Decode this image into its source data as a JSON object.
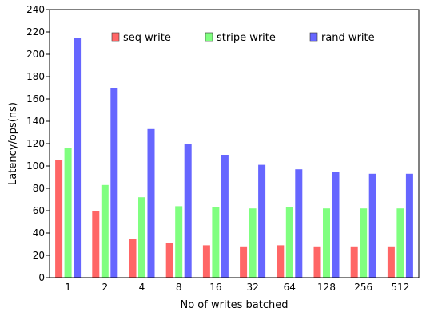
{
  "chart_data": {
    "type": "bar",
    "xlabel": "No of writes batched",
    "ylabel": "Latency/ops(ns)",
    "categories": [
      "1",
      "2",
      "4",
      "8",
      "16",
      "32",
      "64",
      "128",
      "256",
      "512"
    ],
    "ylim": [
      0,
      240
    ],
    "yticks": [
      0,
      20,
      40,
      60,
      80,
      100,
      120,
      140,
      160,
      180,
      200,
      220,
      240
    ],
    "grid": false,
    "legend_position": "top",
    "series": [
      {
        "name": "seq write",
        "color": "#ff6666",
        "values": [
          105,
          60,
          35,
          31,
          29,
          28,
          29,
          28,
          28,
          28
        ]
      },
      {
        "name": "stripe write",
        "color": "#80ff80",
        "values": [
          116,
          83,
          72,
          64,
          63,
          62,
          63,
          62,
          62,
          62
        ]
      },
      {
        "name": "rand write",
        "color": "#6666ff",
        "values": [
          215,
          170,
          133,
          120,
          110,
          101,
          97,
          95,
          93,
          93
        ]
      }
    ]
  }
}
